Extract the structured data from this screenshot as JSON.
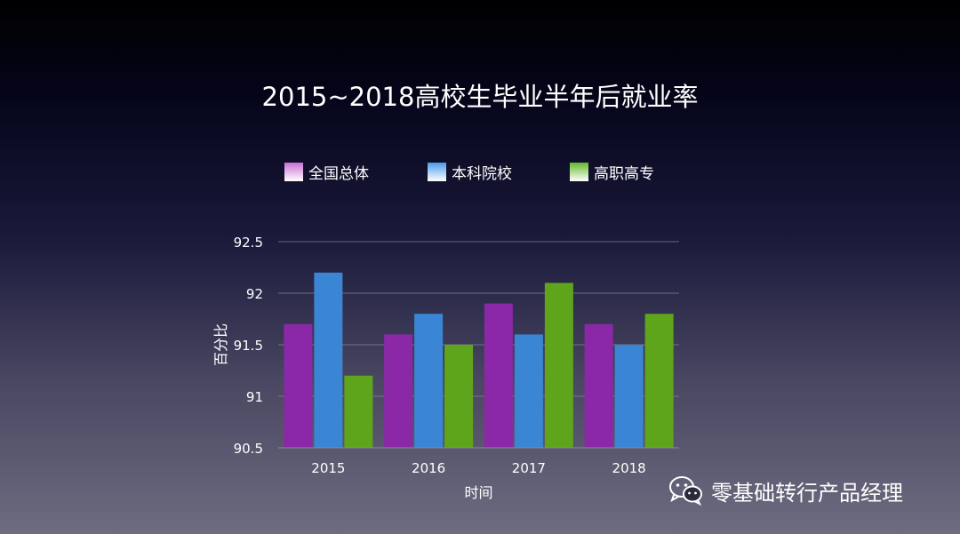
{
  "chart_data": {
    "type": "bar",
    "title": "2015~2018高校生毕业半年后就业率",
    "xlabel": "时间",
    "ylabel": "百分比",
    "categories": [
      "2015",
      "2016",
      "2017",
      "2018"
    ],
    "series": [
      {
        "name": "全国总体",
        "values": [
          91.7,
          91.6,
          91.9,
          91.7
        ],
        "color": "#8b28a8"
      },
      {
        "name": "本科院校",
        "values": [
          92.2,
          91.8,
          91.6,
          91.5
        ],
        "color": "#3a86d4"
      },
      {
        "name": "高职高专",
        "values": [
          91.2,
          91.5,
          92.1,
          91.8
        ],
        "color": "#5fa51c"
      }
    ],
    "ylim": [
      90.5,
      92.5
    ],
    "yticks": [
      "90.5",
      "91",
      "91.5",
      "92",
      "92.5"
    ],
    "grid": true,
    "legend_position": "top"
  },
  "watermark": {
    "text": "零基础转行产品经理",
    "icon": "wechat-icon"
  }
}
